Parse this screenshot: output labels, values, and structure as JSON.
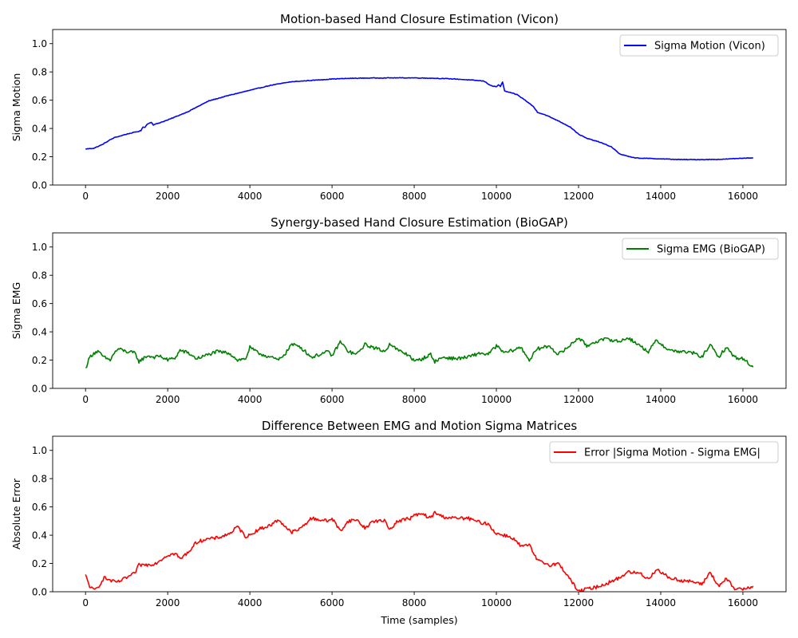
{
  "chart_data": [
    {
      "type": "line",
      "title": "Motion-based Hand Closure Estimation (Vicon)",
      "xlabel": "",
      "ylabel": "Sigma Motion",
      "xlim": [
        -800,
        17050
      ],
      "ylim": [
        0.0,
        1.1
      ],
      "xticks": [
        0,
        2000,
        4000,
        6000,
        8000,
        10000,
        12000,
        14000,
        16000
      ],
      "yticks": [
        0.0,
        0.2,
        0.4,
        0.6,
        0.8,
        1.0
      ],
      "grid": false,
      "legend_position": "upper right",
      "series": [
        {
          "name": "Sigma Motion (Vicon)",
          "color": "#0000ff",
          "noise": 0.002,
          "x": [
            0,
            200,
            400,
            600,
            700,
            1000,
            1300,
            1350,
            1400,
            1450,
            1500,
            1600,
            1650,
            1700,
            2000,
            2500,
            3000,
            3500,
            4000,
            4500,
            4900,
            5000,
            5500,
            6000,
            6500,
            7000,
            7500,
            8000,
            8500,
            9000,
            9500,
            9700,
            9800,
            9900,
            10000,
            10050,
            10100,
            10150,
            10200,
            10500,
            10700,
            10900,
            11000,
            11200,
            11500,
            11800,
            12000,
            12200,
            12500,
            12800,
            13000,
            13300,
            13500,
            14000,
            14500,
            15000,
            15500,
            16000,
            16250
          ],
          "y": [
            0.255,
            0.26,
            0.285,
            0.32,
            0.335,
            0.36,
            0.38,
            0.385,
            0.41,
            0.41,
            0.43,
            0.445,
            0.425,
            0.43,
            0.46,
            0.52,
            0.595,
            0.635,
            0.67,
            0.705,
            0.725,
            0.73,
            0.74,
            0.75,
            0.755,
            0.757,
            0.758,
            0.758,
            0.755,
            0.75,
            0.74,
            0.735,
            0.715,
            0.7,
            0.695,
            0.71,
            0.695,
            0.73,
            0.665,
            0.64,
            0.6,
            0.555,
            0.515,
            0.495,
            0.455,
            0.41,
            0.36,
            0.33,
            0.305,
            0.27,
            0.22,
            0.195,
            0.19,
            0.185,
            0.18,
            0.18,
            0.182,
            0.19,
            0.193
          ]
        }
      ]
    },
    {
      "type": "line",
      "title": "Synergy-based Hand Closure Estimation (BioGAP)",
      "xlabel": "",
      "ylabel": "Sigma EMG",
      "xlim": [
        -800,
        17050
      ],
      "ylim": [
        0.0,
        1.1
      ],
      "xticks": [
        0,
        2000,
        4000,
        6000,
        8000,
        10000,
        12000,
        14000,
        16000
      ],
      "yticks": [
        0.0,
        0.2,
        0.4,
        0.6,
        0.8,
        1.0
      ],
      "grid": false,
      "legend_position": "upper right",
      "series": [
        {
          "name": "Sigma EMG (BioGAP)",
          "color": "#008000",
          "noise": 0.012,
          "x": [
            0,
            100,
            200,
            300,
            450,
            600,
            700,
            800,
            1000,
            1200,
            1300,
            1500,
            1700,
            1800,
            2000,
            2200,
            2300,
            2500,
            2700,
            2900,
            3200,
            3500,
            3700,
            3900,
            4000,
            4200,
            4500,
            4700,
            4900,
            5000,
            5200,
            5500,
            5700,
            5900,
            6000,
            6200,
            6400,
            6600,
            6800,
            7000,
            7300,
            7400,
            7600,
            7900,
            8000,
            8200,
            8400,
            8500,
            8700,
            9000,
            9300,
            9600,
            9800,
            10000,
            10200,
            10400,
            10600,
            10800,
            11000,
            11300,
            11500,
            11700,
            12000,
            12200,
            12400,
            12700,
            13000,
            13200,
            13500,
            13700,
            13900,
            14200,
            14500,
            14800,
            15000,
            15200,
            15400,
            15600,
            15800,
            16000,
            16250
          ],
          "y": [
            0.14,
            0.22,
            0.25,
            0.26,
            0.22,
            0.2,
            0.25,
            0.28,
            0.26,
            0.25,
            0.19,
            0.23,
            0.22,
            0.23,
            0.2,
            0.22,
            0.27,
            0.25,
            0.21,
            0.23,
            0.26,
            0.25,
            0.2,
            0.21,
            0.29,
            0.25,
            0.22,
            0.2,
            0.26,
            0.31,
            0.3,
            0.22,
            0.24,
            0.26,
            0.23,
            0.33,
            0.26,
            0.24,
            0.31,
            0.29,
            0.26,
            0.32,
            0.27,
            0.23,
            0.19,
            0.21,
            0.24,
            0.19,
            0.22,
            0.21,
            0.22,
            0.25,
            0.24,
            0.3,
            0.25,
            0.27,
            0.29,
            0.2,
            0.28,
            0.3,
            0.24,
            0.28,
            0.36,
            0.3,
            0.33,
            0.35,
            0.33,
            0.36,
            0.3,
            0.26,
            0.34,
            0.27,
            0.26,
            0.25,
            0.22,
            0.31,
            0.22,
            0.29,
            0.22,
            0.21,
            0.15
          ]
        }
      ]
    },
    {
      "type": "line",
      "title": "Difference Between EMG and Motion Sigma Matrices",
      "xlabel": "Time (samples)",
      "ylabel": "Absolute Error",
      "xlim": [
        -800,
        17050
      ],
      "ylim": [
        0.0,
        1.1
      ],
      "xticks": [
        0,
        2000,
        4000,
        6000,
        8000,
        10000,
        12000,
        14000,
        16000
      ],
      "yticks": [
        0.0,
        0.2,
        0.4,
        0.6,
        0.8,
        1.0
      ],
      "grid": false,
      "legend_position": "upper right",
      "series": [
        {
          "name": "Error |Sigma Motion - Sigma EMG|",
          "color": "#ff0000",
          "noise": 0.012,
          "x": [
            0,
            100,
            200,
            300,
            450,
            600,
            700,
            800,
            1000,
            1200,
            1300,
            1500,
            1700,
            1800,
            2000,
            2200,
            2300,
            2500,
            2700,
            2900,
            3200,
            3500,
            3700,
            3900,
            4000,
            4200,
            4500,
            4700,
            4900,
            5000,
            5200,
            5500,
            5700,
            5900,
            6000,
            6200,
            6400,
            6600,
            6800,
            7000,
            7300,
            7400,
            7600,
            7900,
            8000,
            8200,
            8400,
            8500,
            8700,
            9000,
            9300,
            9600,
            9800,
            10000,
            10200,
            10400,
            10600,
            10800,
            11000,
            11300,
            11500,
            11700,
            12000,
            12200,
            12400,
            12700,
            13000,
            13200,
            13500,
            13700,
            13900,
            14200,
            14500,
            14800,
            15000,
            15200,
            15400,
            15600,
            15800,
            16000,
            16250
          ],
          "y": [
            0.115,
            0.04,
            0.01,
            0.03,
            0.1,
            0.08,
            0.07,
            0.07,
            0.1,
            0.13,
            0.19,
            0.19,
            0.2,
            0.22,
            0.26,
            0.27,
            0.23,
            0.28,
            0.35,
            0.37,
            0.38,
            0.41,
            0.46,
            0.39,
            0.4,
            0.44,
            0.47,
            0.51,
            0.45,
            0.42,
            0.44,
            0.52,
            0.51,
            0.5,
            0.52,
            0.43,
            0.5,
            0.51,
            0.45,
            0.5,
            0.5,
            0.44,
            0.5,
            0.52,
            0.54,
            0.55,
            0.52,
            0.56,
            0.53,
            0.52,
            0.52,
            0.49,
            0.48,
            0.41,
            0.4,
            0.38,
            0.32,
            0.33,
            0.22,
            0.19,
            0.2,
            0.13,
            0.0,
            0.02,
            0.03,
            0.06,
            0.1,
            0.14,
            0.13,
            0.09,
            0.16,
            0.1,
            0.08,
            0.07,
            0.05,
            0.14,
            0.04,
            0.09,
            0.02,
            0.02,
            0.04
          ]
        }
      ]
    }
  ]
}
